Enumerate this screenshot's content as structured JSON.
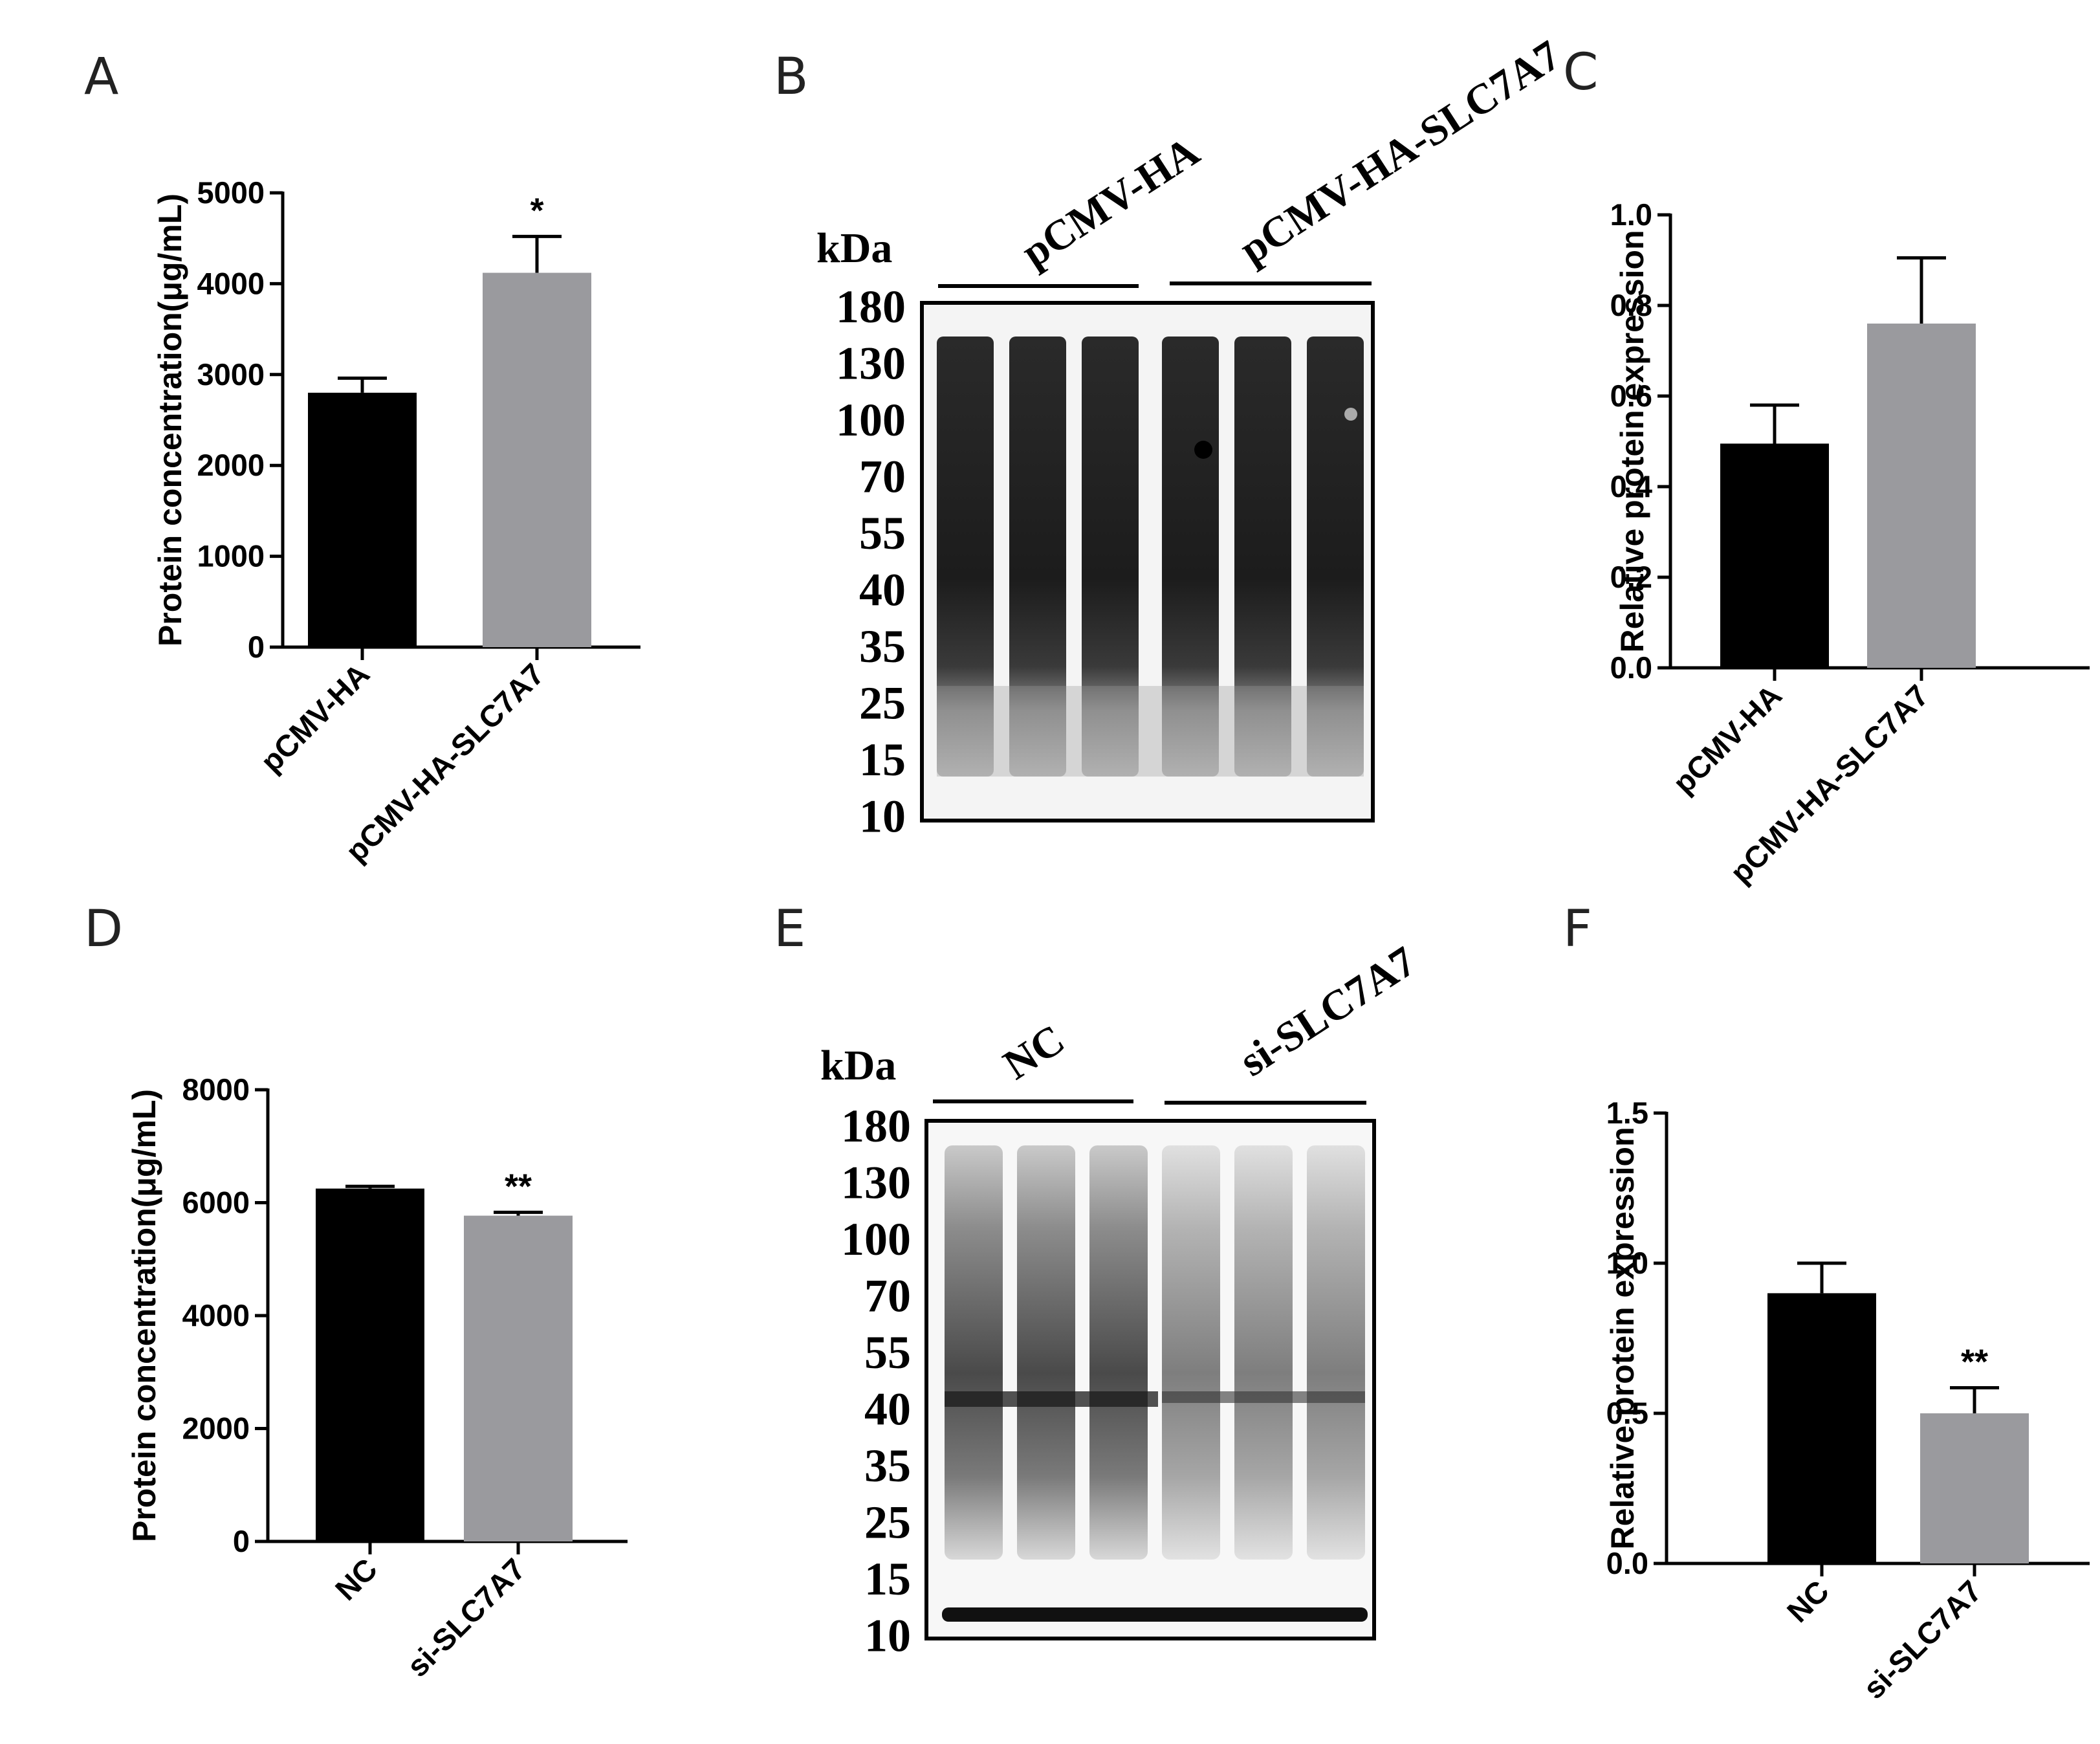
{
  "panels": [
    {
      "letter": "A"
    },
    {
      "letter": "B"
    },
    {
      "letter": "C"
    },
    {
      "letter": "D"
    },
    {
      "letter": "E"
    },
    {
      "letter": "F"
    }
  ],
  "chart_data": [
    {
      "panel": "A",
      "type": "bar",
      "categories": [
        "pCMV-HA",
        "pCMV-HA-SLC7A7"
      ],
      "values": [
        2800,
        4120
      ],
      "errors": [
        160,
        400
      ],
      "significance": [
        "",
        "*"
      ],
      "colors": [
        "#000000",
        "#9a9a9e"
      ],
      "ylabel": "Protein concentration(μg/mL)",
      "ylim": [
        0,
        5000
      ],
      "yticks": [
        "0",
        "1000",
        "2000",
        "3000",
        "4000",
        "5000"
      ],
      "ytick_values": [
        0,
        1000,
        2000,
        3000,
        4000,
        5000
      ]
    },
    {
      "panel": "C",
      "type": "bar",
      "categories": [
        "pCMV-HA",
        "pCMV-HA-SLC7A7"
      ],
      "values": [
        0.495,
        0.76
      ],
      "errors": [
        0.085,
        0.145
      ],
      "significance": [
        "",
        ""
      ],
      "colors": [
        "#000000",
        "#9a9a9e"
      ],
      "ylabel": "Relative protein expression",
      "ylim": [
        0,
        1.0
      ],
      "yticks": [
        "0.0",
        "0.2",
        "0.4",
        "0.6",
        "0.8",
        "1.0"
      ],
      "ytick_values": [
        0,
        0.2,
        0.4,
        0.6,
        0.8,
        1.0
      ]
    },
    {
      "panel": "D",
      "type": "bar",
      "categories": [
        "NC",
        "si-SLC7A7"
      ],
      "values": [
        6250,
        5770
      ],
      "errors": [
        40,
        60
      ],
      "significance": [
        "",
        "**"
      ],
      "colors": [
        "#000000",
        "#9a9a9e"
      ],
      "ylabel": "Protein concentration(μg/mL)",
      "ylim": [
        0,
        8000
      ],
      "yticks": [
        "0",
        "2000",
        "4000",
        "6000",
        "8000"
      ],
      "ytick_values": [
        0,
        2000,
        4000,
        6000,
        8000
      ]
    },
    {
      "panel": "F",
      "type": "bar",
      "categories": [
        "NC",
        "si-SLC7A7"
      ],
      "values": [
        0.9,
        0.5
      ],
      "errors": [
        0.1,
        0.085
      ],
      "significance": [
        "",
        "**"
      ],
      "colors": [
        "#000000",
        "#9a9a9e"
      ],
      "ylabel": "Relative protein expression",
      "ylim": [
        0,
        1.5
      ],
      "yticks": [
        "0.0",
        "0.5",
        "1.0",
        "1.5"
      ],
      "ytick_values": [
        0,
        0.5,
        1.0,
        1.5
      ]
    }
  ],
  "blots": [
    {
      "panel": "B",
      "unit": "kDa",
      "markers": [
        "180",
        "130",
        "100",
        "70",
        "55",
        "40",
        "35",
        "25",
        "15",
        "10"
      ],
      "groups": [
        "pCMV-HA",
        "pCMV-HA-SLC7A7"
      ]
    },
    {
      "panel": "E",
      "unit": "kDa",
      "markers": [
        "180",
        "130",
        "100",
        "70",
        "55",
        "40",
        "35",
        "25",
        "15",
        "10"
      ],
      "groups": [
        "NC",
        "si-SLC7A7"
      ]
    }
  ]
}
